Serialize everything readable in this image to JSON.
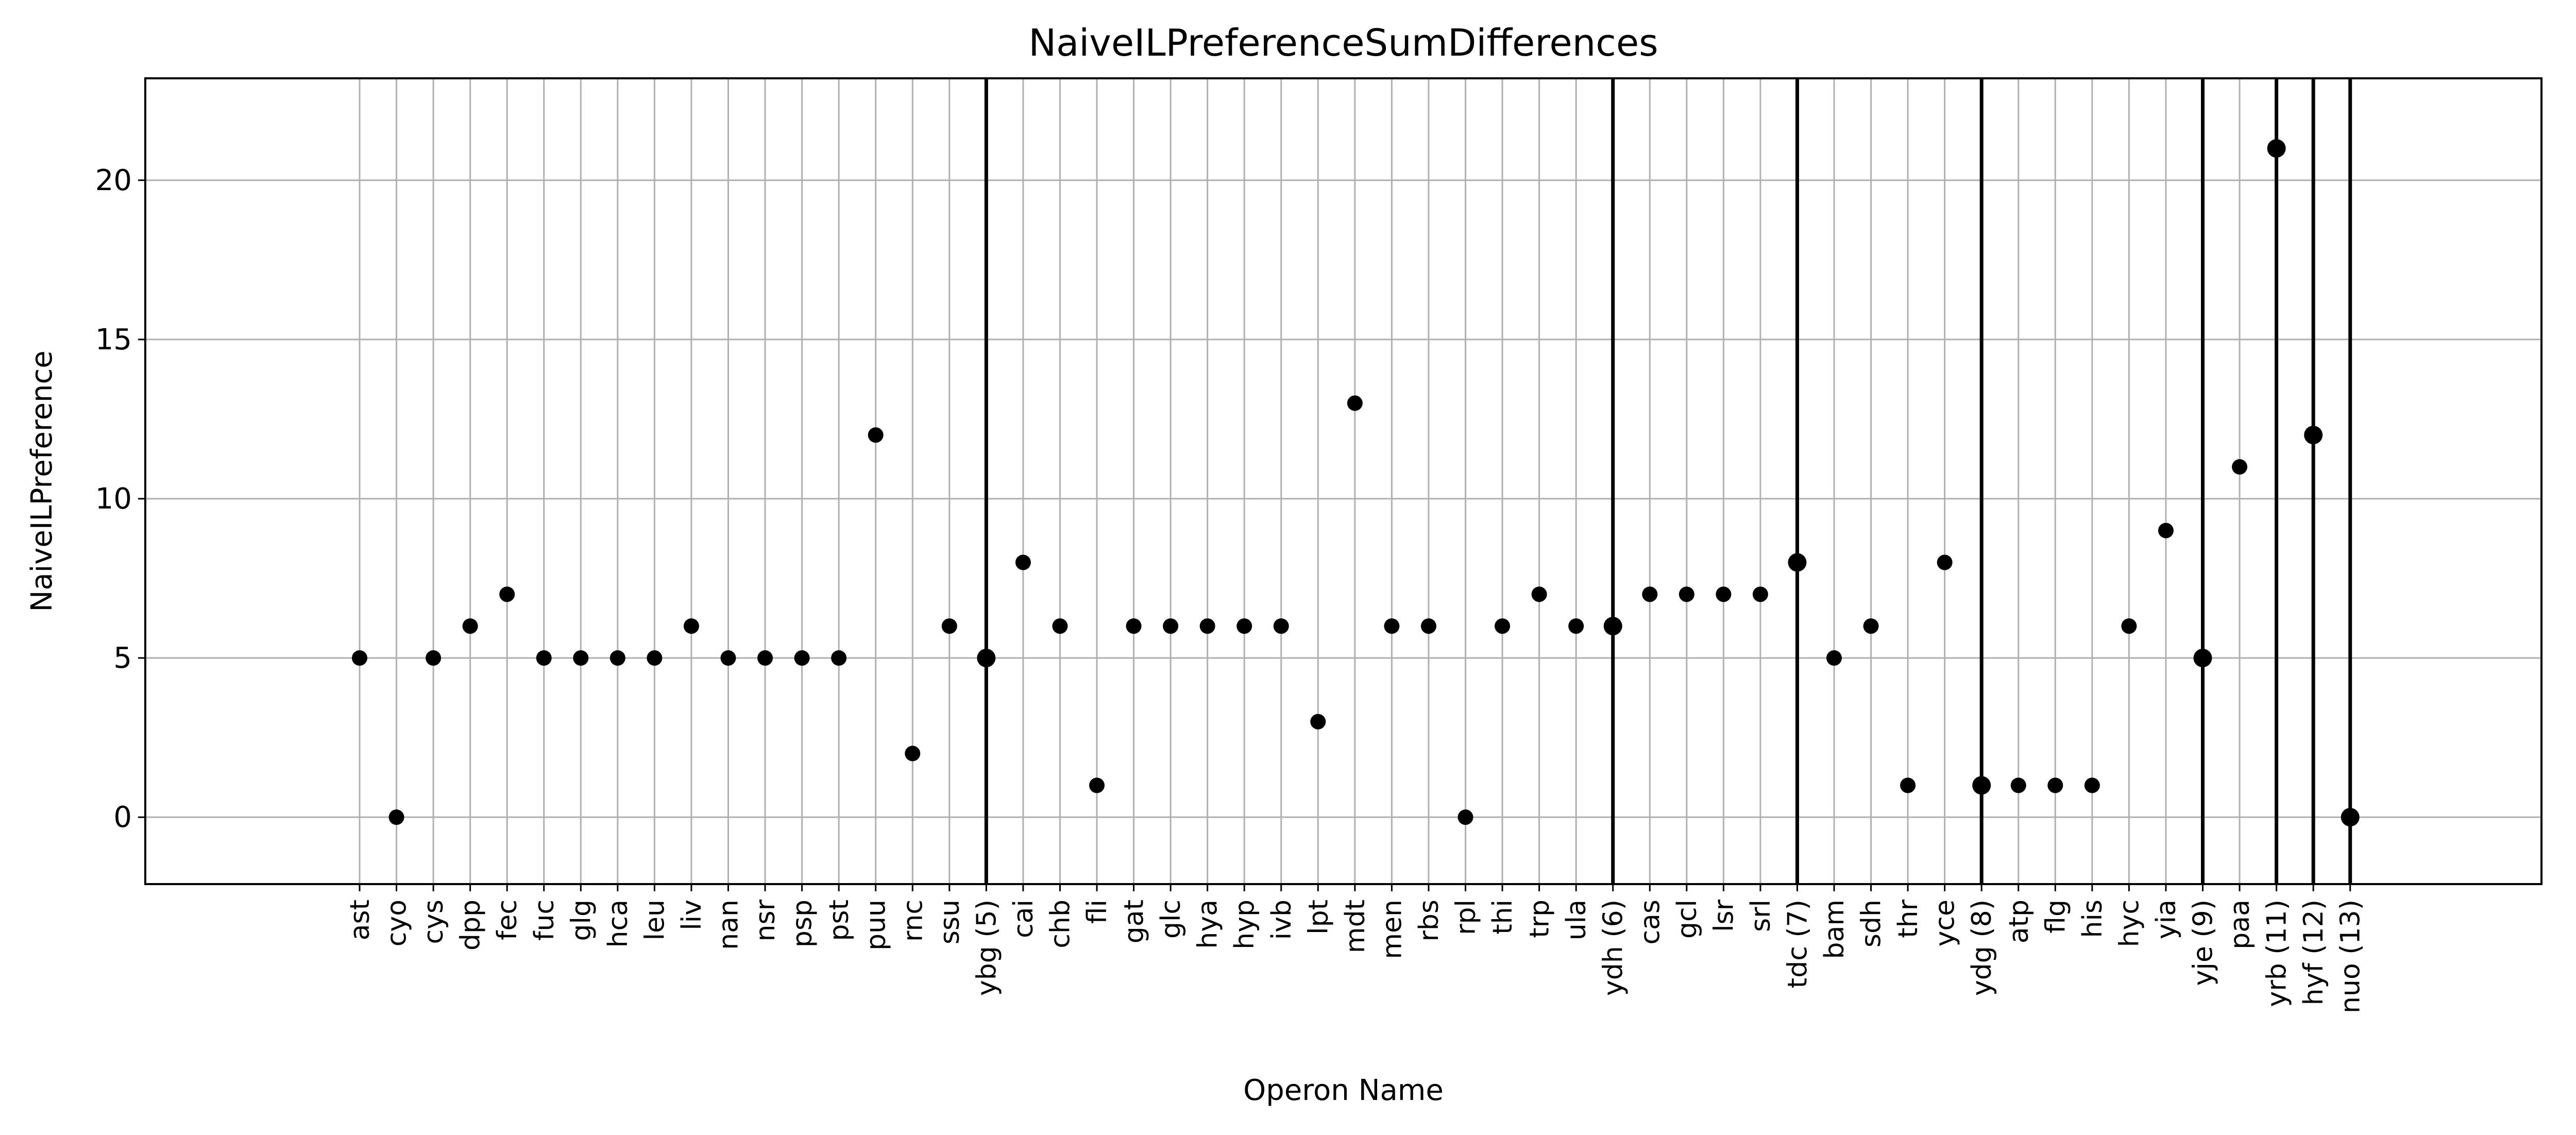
{
  "chart_data": {
    "type": "scatter",
    "title": "NaiveILPreferenceSumDifferences",
    "xlabel": "Operon Name",
    "ylabel": "NaiveILPreference",
    "ylim": [
      -2.1,
      23.2
    ],
    "yticks": [
      0,
      5,
      10,
      15,
      20
    ],
    "grid": true,
    "marker_color": "#000000",
    "grid_color": "#b0b0b0",
    "categories": [
      "ast",
      "cyo",
      "cys",
      "dpp",
      "fec",
      "fuc",
      "glg",
      "hca",
      "leu",
      "liv",
      "nan",
      "nsr",
      "psp",
      "pst",
      "puu",
      "rnc",
      "ssu",
      "ybg (5)",
      "cai",
      "chb",
      "fli",
      "gat",
      "glc",
      "hya",
      "hyp",
      "ivb",
      "lpt",
      "mdt",
      "men",
      "rbs",
      "rpl",
      "thi",
      "trp",
      "ula",
      "ydh (6)",
      "cas",
      "gcl",
      "lsr",
      "srl",
      "tdc (7)",
      "bam",
      "sdh",
      "thr",
      "yce",
      "ydg (8)",
      "atp",
      "flg",
      "his",
      "hyc",
      "yia",
      "yje (9)",
      "paa",
      "yrb (11)",
      "hyf (12)",
      "nuo (13)"
    ],
    "values": [
      5,
      0,
      5,
      6,
      7,
      5,
      5,
      5,
      5,
      6,
      5,
      5,
      5,
      5,
      12,
      2,
      6,
      5,
      8,
      6,
      1,
      6,
      6,
      6,
      6,
      6,
      3,
      13,
      6,
      6,
      0,
      6,
      7,
      6,
      6,
      7,
      7,
      7,
      7,
      8,
      5,
      6,
      1,
      8,
      1,
      1,
      1,
      1,
      6,
      9,
      5,
      11,
      21,
      12,
      0
    ],
    "highlighted_categories": [
      "ybg (5)",
      "ydh (6)",
      "tdc (7)",
      "ydg (8)",
      "yje (9)",
      "yrb (11)",
      "hyf (12)",
      "nuo (13)"
    ]
  }
}
